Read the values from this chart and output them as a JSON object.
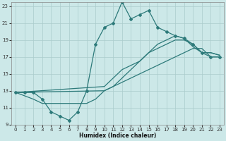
{
  "xlabel": "Humidex (Indice chaleur)",
  "bg_color": "#cce8e8",
  "grid_color": "#aacccc",
  "line_color": "#2d7a7a",
  "xlim": [
    -0.5,
    23.5
  ],
  "ylim": [
    9,
    23.5
  ],
  "xticks": [
    0,
    1,
    2,
    3,
    4,
    5,
    6,
    7,
    8,
    9,
    10,
    11,
    12,
    13,
    14,
    15,
    16,
    17,
    18,
    19,
    20,
    21,
    22,
    23
  ],
  "yticks": [
    9,
    11,
    13,
    15,
    17,
    19,
    21,
    23
  ],
  "line1_x": [
    0,
    1,
    2,
    3,
    4,
    5,
    6,
    7,
    8,
    9,
    10,
    11,
    12,
    13,
    14,
    15,
    16,
    17,
    18,
    19,
    20,
    21,
    22,
    23
  ],
  "line1_y": [
    12.8,
    12.8,
    12.8,
    12.0,
    10.5,
    10.0,
    9.5,
    10.5,
    13.0,
    18.5,
    20.5,
    21.0,
    23.5,
    21.5,
    22.0,
    22.5,
    20.5,
    20.0,
    19.5,
    19.2,
    18.5,
    17.5,
    17.0,
    17.0
  ],
  "line2_x": [
    0,
    2,
    3,
    4,
    5,
    6,
    7,
    8,
    9,
    10,
    11,
    12,
    13,
    14,
    15,
    16,
    17,
    18,
    19,
    20,
    21,
    22,
    23
  ],
  "line2_y": [
    12.8,
    12.0,
    11.5,
    11.5,
    11.5,
    11.5,
    11.5,
    11.5,
    12.0,
    13.0,
    13.5,
    14.0,
    14.5,
    15.0,
    15.5,
    16.0,
    16.5,
    17.0,
    17.5,
    18.0,
    18.0,
    17.0,
    17.0
  ],
  "line3_x": [
    0,
    10,
    11,
    12,
    13,
    14,
    15,
    16,
    17,
    18,
    19,
    20,
    21,
    22,
    23
  ],
  "line3_y": [
    12.8,
    13.0,
    13.5,
    14.5,
    15.5,
    16.5,
    17.5,
    18.0,
    18.5,
    19.0,
    19.0,
    18.5,
    17.5,
    17.5,
    17.2
  ],
  "line4_x": [
    0,
    10,
    11,
    12,
    13,
    14,
    15,
    16,
    17,
    18,
    19,
    20,
    21,
    22,
    23
  ],
  "line4_y": [
    12.8,
    13.5,
    14.5,
    15.5,
    16.0,
    16.5,
    17.5,
    18.5,
    19.0,
    19.5,
    19.2,
    18.2,
    17.5,
    17.5,
    17.2
  ]
}
